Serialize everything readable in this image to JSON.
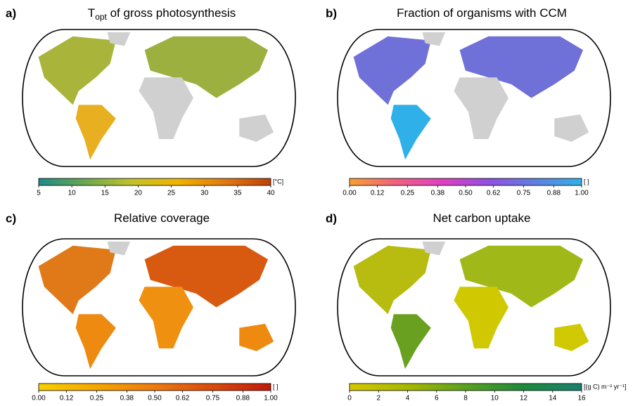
{
  "panels": [
    {
      "label": "a)",
      "title": {
        "main": "T",
        "sub": "opt",
        "rest": " of gross photosynthesis"
      },
      "colorbar": {
        "lim": [
          5,
          40
        ],
        "ticks": [
          5,
          10,
          15,
          20,
          25,
          30,
          35,
          40
        ],
        "unit": "[°C]",
        "colors": [
          "#1f8a8a",
          "#6aa84f",
          "#c2c22a",
          "#f0b400",
          "#e07a10",
          "#c0400a"
        ]
      }
    },
    {
      "label": "b)",
      "title": {
        "main": "Fraction of organisms with CCM"
      },
      "colorbar": {
        "lim": [
          0,
          1
        ],
        "ticks": [
          {
            "value": 0,
            "label": "0.00"
          },
          0.12,
          0.25,
          0.38,
          {
            "value": 0.5,
            "label": "0.50"
          },
          0.62,
          0.75,
          0.88,
          {
            "value": 1,
            "label": "1.00"
          }
        ],
        "unit": "[ ]",
        "colors": [
          "#f9a030",
          "#f06080",
          "#e040c0",
          "#9050e0",
          "#6080e0",
          "#30b0e8"
        ]
      }
    },
    {
      "label": "c)",
      "title": {
        "main": "Relative coverage"
      },
      "colorbar": {
        "lim": [
          0,
          1
        ],
        "ticks": [
          {
            "value": 0,
            "label": "0.00"
          },
          0.12,
          0.25,
          0.38,
          {
            "value": 0.5,
            "label": "0.50"
          },
          0.62,
          0.75,
          0.88,
          {
            "value": 1,
            "label": "1.00"
          }
        ],
        "unit": "[ ]",
        "colors": [
          "#f7d000",
          "#f5a500",
          "#ee7a10",
          "#d84a0c",
          "#c01a0a"
        ]
      }
    },
    {
      "label": "d)",
      "title": {
        "main": "Net carbon uptake"
      },
      "colorbar": {
        "lim": [
          0,
          16
        ],
        "ticks": [
          0,
          2,
          4,
          6,
          8,
          10,
          12,
          14,
          16
        ],
        "unit": "[(g C) m⁻² yr⁻¹]",
        "colors": [
          "#d4c800",
          "#a8b800",
          "#5aa020",
          "#1e8a3a",
          "#1a8070"
        ]
      }
    }
  ]
}
